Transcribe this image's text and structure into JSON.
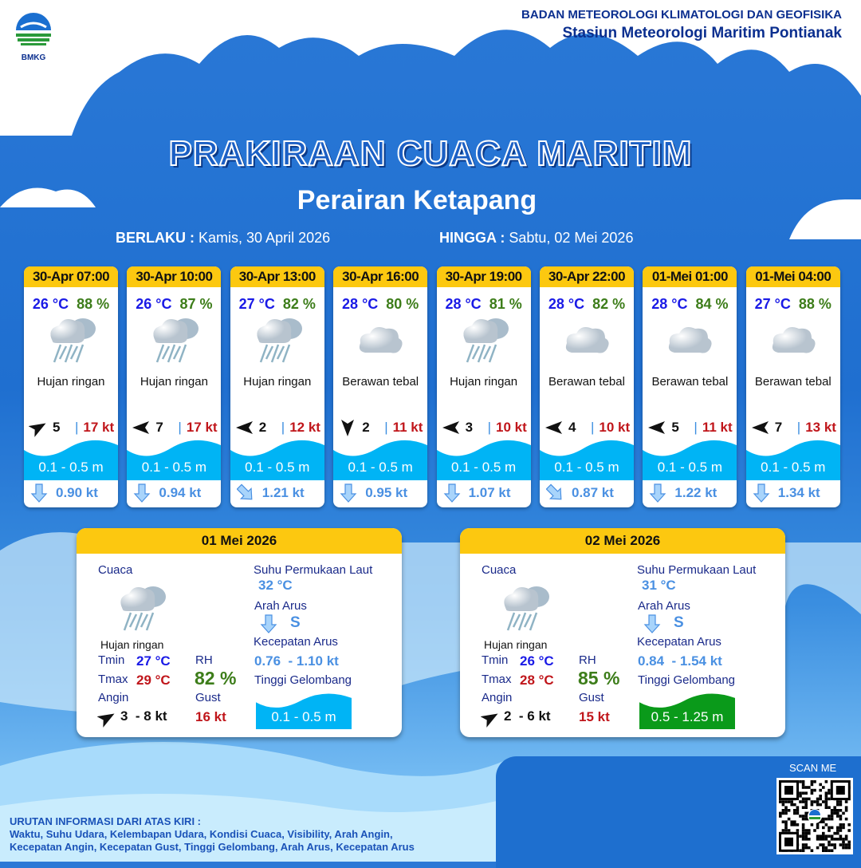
{
  "header": {
    "agency": "BADAN METEOROLOGI KLIMATOLOGI DAN GEOFISIKA",
    "station": "Stasiun Meteorologi Maritim Pontianak",
    "logo_text": "BMKG"
  },
  "title": "PRAKIRAAN CUACA MARITIM",
  "area": "Perairan Ketapang",
  "validity": {
    "from_label": "BERLAKU :",
    "from": "Kamis, 30 April 2026",
    "to_label": "HINGGA :",
    "to": "Sabtu, 02 Mei 2026"
  },
  "colors": {
    "card_header": "#fcc810",
    "temp": "#1a1ae6",
    "humidity": "#3d7d1a",
    "gust": "#c0161b",
    "wave": "#00b4f5",
    "wave_moderate": "#0a9a1a",
    "current": "#4a90e2"
  },
  "forecasts": [
    {
      "time": "30-Apr 07:00",
      "temp": "26 °C",
      "rh": "88 %",
      "icon": "light-rain-icon",
      "weather": "Hujan ringan",
      "wind_dir_deg": 60,
      "wind_speed": "5",
      "gust": "17 kt",
      "wave": "0.1 - 0.5 m",
      "current_dir": "S",
      "current_speed": "0.90 kt"
    },
    {
      "time": "30-Apr 10:00",
      "temp": "26 °C",
      "rh": "87 %",
      "icon": "light-rain-icon",
      "weather": "Hujan ringan",
      "wind_dir_deg": 270,
      "wind_speed": "7",
      "gust": "17 kt",
      "wave": "0.1 - 0.5 m",
      "current_dir": "S",
      "current_speed": "0.94 kt"
    },
    {
      "time": "30-Apr 13:00",
      "temp": "27 °C",
      "rh": "82 %",
      "icon": "light-rain-icon",
      "weather": "Hujan ringan",
      "wind_dir_deg": 270,
      "wind_speed": "2",
      "gust": "12 kt",
      "wave": "0.1 - 0.5 m",
      "current_dir": "SE",
      "current_speed": "1.21 kt"
    },
    {
      "time": "30-Apr 16:00",
      "temp": "28 °C",
      "rh": "80 %",
      "icon": "overcast-cloud-icon",
      "weather": "Berawan tebal",
      "wind_dir_deg": 180,
      "wind_speed": "2",
      "gust": "11 kt",
      "wave": "0.1 - 0.5 m",
      "current_dir": "S",
      "current_speed": "0.95 kt"
    },
    {
      "time": "30-Apr 19:00",
      "temp": "28 °C",
      "rh": "81 %",
      "icon": "light-rain-icon",
      "weather": "Hujan ringan",
      "wind_dir_deg": 270,
      "wind_speed": "3",
      "gust": "10 kt",
      "wave": "0.1 - 0.5 m",
      "current_dir": "S",
      "current_speed": "1.07 kt"
    },
    {
      "time": "30-Apr 22:00",
      "temp": "28 °C",
      "rh": "82 %",
      "icon": "overcast-cloud-icon",
      "weather": "Berawan tebal",
      "wind_dir_deg": 270,
      "wind_speed": "4",
      "gust": "10 kt",
      "wave": "0.1 - 0.5 m",
      "current_dir": "SE",
      "current_speed": "0.87 kt"
    },
    {
      "time": "01-Mei 01:00",
      "temp": "28 °C",
      "rh": "84 %",
      "icon": "overcast-cloud-icon",
      "weather": "Berawan tebal",
      "wind_dir_deg": 270,
      "wind_speed": "5",
      "gust": "11 kt",
      "wave": "0.1 - 0.5 m",
      "current_dir": "S",
      "current_speed": "1.22 kt"
    },
    {
      "time": "01-Mei 04:00",
      "temp": "27 °C",
      "rh": "88 %",
      "icon": "overcast-cloud-icon",
      "weather": "Berawan tebal",
      "wind_dir_deg": 270,
      "wind_speed": "7",
      "gust": "13 kt",
      "wave": "0.1 - 0.5 m",
      "current_dir": "S",
      "current_speed": "1.34 kt"
    }
  ],
  "summary_labels": {
    "weather": "Cuaca",
    "sst": "Suhu Permukaan Laut",
    "current_dir": "Arah Arus",
    "current_speed": "Kecepatan Arus",
    "wave": "Tinggi Gelombang",
    "tmin": "Tmin",
    "tmax": "Tmax",
    "rh": "RH",
    "wind": "Angin",
    "gust": "Gust"
  },
  "daily": [
    {
      "date": "01 Mei 2026",
      "weather": "Hujan ringan",
      "icon": "light-rain-icon",
      "tmin": "27 °C",
      "tmax": "29 °C",
      "rh": "82 %",
      "wind_dir_deg": 60,
      "wind": "3  - 8 kt",
      "gust": "16 kt",
      "sst": "32 °C",
      "current_dir": "S",
      "current_speed": "0.76  - 1.10 kt",
      "wave": "0.1 - 0.5 m",
      "wave_color": "#00b4f5"
    },
    {
      "date": "02 Mei 2026",
      "weather": "Hujan ringan",
      "icon": "light-rain-icon",
      "tmin": "26 °C",
      "tmax": "28 °C",
      "rh": "85 %",
      "wind_dir_deg": 60,
      "wind": "2  - 6 kt",
      "gust": "15 kt",
      "sst": "31 °C",
      "current_dir": "S",
      "current_speed": "0.84  - 1.54 kt",
      "wave": "0.5 - 1.25 m",
      "wave_color": "#0a9a1a"
    }
  ],
  "footer": {
    "legend_title": "URUTAN INFORMASI DARI ATAS KIRI :",
    "legend_line1": "Waktu, Suhu Udara, Kelembapan Udara, Kondisi Cuaca, Visibility, Arah Angin,",
    "legend_line2": "Kecepatan Angin, Kecepatan Gust, Tinggi Gelombang, Arah Arus, Kecepatan Arus",
    "scan": "SCAN ME"
  }
}
